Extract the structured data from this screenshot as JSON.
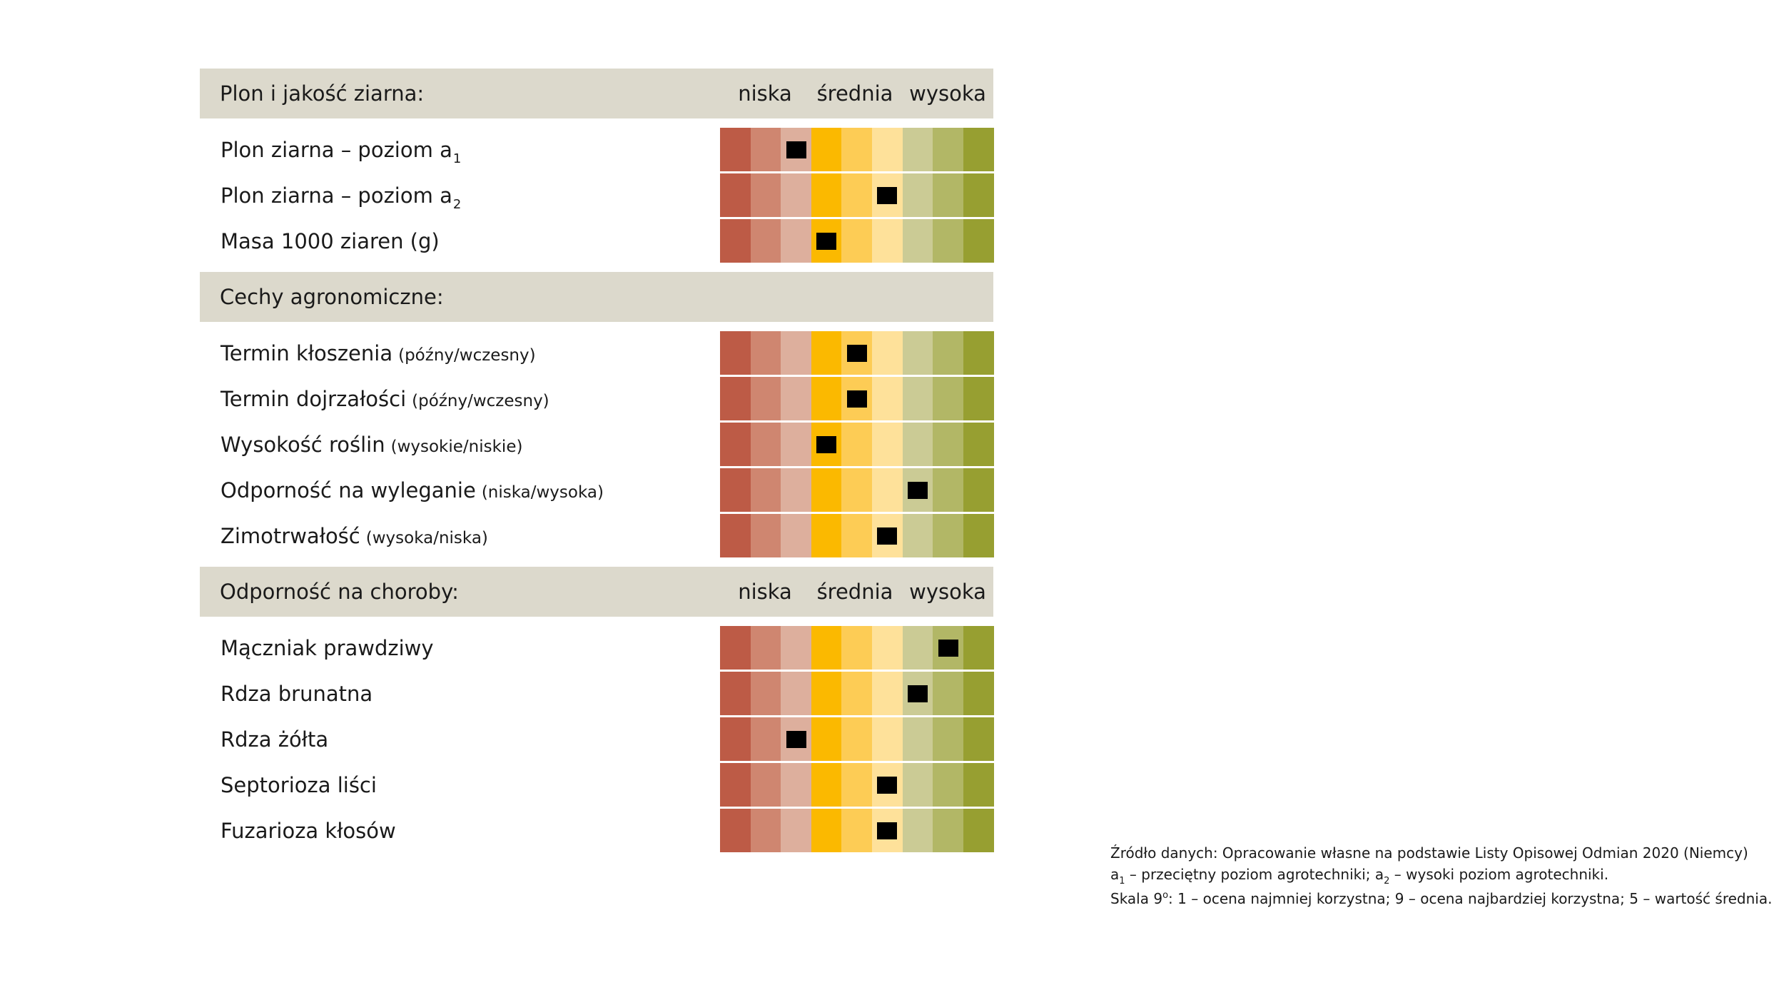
{
  "chart_data": {
    "type": "table",
    "scale_min": 1,
    "scale_max": 9,
    "scale_colors": [
      "#bd5b46",
      "#cf8670",
      "#ddaf9d",
      "#fbb900",
      "#fdcc55",
      "#fee19a",
      "#cbcb95",
      "#b2b766",
      "#979f31"
    ],
    "marker_color": "#000000",
    "header_color": "#dcd9cc",
    "sections": [
      {
        "title": "Plon i jakość ziarna:",
        "scale_labels": [
          "niska",
          "średnia",
          "wysoka"
        ],
        "rows": [
          {
            "label": "Plon ziarna – poziom a",
            "sub": "1",
            "note": "",
            "value": 3
          },
          {
            "label": "Plon ziarna – poziom a",
            "sub": "2",
            "note": "",
            "value": 6
          },
          {
            "label": "Masa 1000 ziaren (g)",
            "sub": "",
            "note": "",
            "value": 4
          }
        ]
      },
      {
        "title": "Cechy agronomiczne:",
        "scale_labels": [],
        "rows": [
          {
            "label": "Termin kłoszenia",
            "sub": "",
            "note": "(późny/wczesny)",
            "value": 5
          },
          {
            "label": "Termin dojrzałości",
            "sub": "",
            "note": "(późny/wczesny)",
            "value": 5
          },
          {
            "label": "Wysokość roślin",
            "sub": "",
            "note": "(wysokie/niskie)",
            "value": 4
          },
          {
            "label": "Odporność na wyleganie",
            "sub": "",
            "note": "(niska/wysoka)",
            "value": 7
          },
          {
            "label": "Zimotrwałość",
            "sub": "",
            "note": "(wysoka/niska)",
            "value": 6
          }
        ]
      },
      {
        "title": "Odporność na choroby:",
        "scale_labels": [
          "niska",
          "średnia",
          "wysoka"
        ],
        "rows": [
          {
            "label": "Mączniak prawdziwy",
            "sub": "",
            "note": "",
            "value": 8
          },
          {
            "label": "Rdza brunatna",
            "sub": "",
            "note": "",
            "value": 7
          },
          {
            "label": "Rdza żółta",
            "sub": "",
            "note": "",
            "value": 3
          },
          {
            "label": "Septorioza liści",
            "sub": "",
            "note": "",
            "value": 6
          },
          {
            "label": "Fuzarioza kłosów",
            "sub": "",
            "note": "",
            "value": 6
          }
        ]
      }
    ]
  },
  "footer": {
    "source": "Źródło danych: Opracowanie własne na podstawie Listy Opisowej Odmian 2020 (Niemcy)",
    "a1_prefix": "a",
    "a1_sub": "1",
    "a1_text": " – przeciętny poziom agrotechniki; a",
    "a2_sub": "2",
    "a2_text": " – wysoki poziom agrotechniki.",
    "scale_prefix": "Skala 9",
    "scale_sup": "o",
    "scale_text": ": 1 – ocena najmniej korzystna; 9 – ocena najbardziej korzystna; 5 – wartość średnia."
  }
}
